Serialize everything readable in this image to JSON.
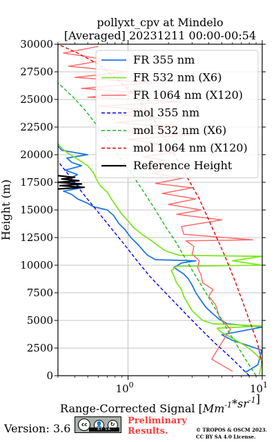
{
  "chart_data": {
    "type": "line",
    "title_line1": "pollyxt_cpv at Mindelo",
    "title_line2": "[Averaged] 20231211 00:00-00:54",
    "xlabel": "Range-Corrected Signal [$Mm^{-1}*sr^{-1}$]",
    "ylabel": "Height (m)",
    "xscale": "log",
    "xlim": [
      0.3,
      10
    ],
    "ylim": [
      0,
      30000
    ],
    "x_ticks_major": [
      {
        "value": 1,
        "base": "10",
        "exp": "0"
      },
      {
        "value": 10,
        "base": "10",
        "exp": "1"
      }
    ],
    "y_ticks": [
      0,
      2500,
      5000,
      7500,
      10000,
      12500,
      15000,
      17500,
      20000,
      22500,
      25000,
      27500,
      30000
    ],
    "grid": true,
    "legend_position": "top-right",
    "series": [
      {
        "name": "FR 355 nm",
        "color": "#1f77e8",
        "style": "solid",
        "width": 1.8,
        "points": [
          [
            7.5,
            300
          ],
          [
            9.3,
            1000
          ],
          [
            9.9,
            2300
          ],
          [
            8.0,
            2700
          ],
          [
            6.0,
            3200
          ],
          [
            5.0,
            3700
          ],
          [
            10.0,
            4400
          ],
          [
            5.5,
            4700
          ],
          [
            4.8,
            5100
          ],
          [
            4.2,
            5700
          ],
          [
            3.8,
            6200
          ],
          [
            3.5,
            6800
          ],
          [
            3.2,
            7500
          ],
          [
            3.0,
            8200
          ],
          [
            2.8,
            8800
          ],
          [
            2.6,
            9200
          ],
          [
            2.2,
            9800
          ],
          [
            2.5,
            10200
          ],
          [
            3.2,
            10400
          ],
          [
            1.6,
            10500
          ],
          [
            1.4,
            10900
          ],
          [
            1.3,
            11300
          ],
          [
            1.2,
            11800
          ],
          [
            1.05,
            12500
          ],
          [
            0.95,
            13200
          ],
          [
            0.85,
            13800
          ],
          [
            0.78,
            14500
          ],
          [
            0.7,
            15000
          ],
          [
            0.55,
            15300
          ],
          [
            0.5,
            15600
          ],
          [
            0.42,
            16000
          ],
          [
            0.38,
            16400
          ],
          [
            0.33,
            16700
          ],
          [
            0.45,
            17000
          ],
          [
            0.4,
            17400
          ],
          [
            0.36,
            17800
          ],
          [
            0.42,
            18200
          ],
          [
            0.34,
            18600
          ],
          [
            0.45,
            19000
          ],
          [
            0.38,
            19300
          ],
          [
            0.35,
            19700
          ],
          [
            0.5,
            20000
          ],
          [
            0.32,
            20400
          ],
          [
            0.3,
            20800
          ]
        ]
      },
      {
        "name": "FR 532 nm (X6)",
        "color": "#7fe61f",
        "style": "solid",
        "width": 1.8,
        "points": [
          [
            9.5,
            100
          ],
          [
            9.8,
            800
          ],
          [
            10.0,
            1300
          ],
          [
            9.2,
            1800
          ],
          [
            8.3,
            2300
          ],
          [
            7.5,
            2700
          ],
          [
            6.2,
            3300
          ],
          [
            5.0,
            3900
          ],
          [
            4.6,
            4300
          ],
          [
            10.0,
            4500
          ],
          [
            4.3,
            4700
          ],
          [
            3.6,
            5000
          ],
          [
            3.3,
            5400
          ],
          [
            3.0,
            5900
          ],
          [
            2.8,
            6500
          ],
          [
            2.6,
            7200
          ],
          [
            2.5,
            7800
          ],
          [
            2.3,
            8400
          ],
          [
            2.2,
            9000
          ],
          [
            2.1,
            9500
          ],
          [
            2.3,
            9900
          ],
          [
            10.0,
            10000
          ],
          [
            6.0,
            10400
          ],
          [
            10.0,
            10800
          ],
          [
            2.4,
            10900
          ],
          [
            1.9,
            11300
          ],
          [
            1.7,
            11700
          ],
          [
            1.5,
            12200
          ],
          [
            1.3,
            12700
          ],
          [
            1.1,
            13400
          ],
          [
            1.0,
            14000
          ],
          [
            0.9,
            14600
          ],
          [
            0.82,
            15300
          ],
          [
            0.75,
            16000
          ],
          [
            0.7,
            16600
          ],
          [
            0.62,
            17200
          ],
          [
            0.58,
            17800
          ],
          [
            0.55,
            18400
          ],
          [
            0.5,
            19000
          ],
          [
            0.42,
            19600
          ],
          [
            0.35,
            20200
          ],
          [
            0.32,
            20600
          ],
          [
            0.3,
            21000
          ]
        ]
      },
      {
        "name": "FR 1064 nm (X120)",
        "color": "#ff6b6b",
        "style": "solid",
        "width": 1.5,
        "points": [
          [
            6.0,
            400
          ],
          [
            4.2,
            1500
          ],
          [
            5.0,
            3000
          ],
          [
            5.8,
            4200
          ],
          [
            4.8,
            5300
          ],
          [
            4.5,
            6400
          ],
          [
            4.0,
            7200
          ],
          [
            4.3,
            7800
          ],
          [
            3.6,
            8400
          ],
          [
            3.5,
            9100
          ],
          [
            3.3,
            9800
          ],
          [
            3.4,
            10400
          ],
          [
            3.0,
            11000
          ],
          [
            3.1,
            11700
          ],
          [
            2.7,
            12200
          ],
          [
            8.5,
            12300
          ],
          [
            2.6,
            12800
          ],
          [
            2.5,
            13500
          ],
          [
            5.0,
            14100
          ],
          [
            2.3,
            14600
          ],
          [
            3.5,
            15000
          ],
          [
            2.0,
            15500
          ],
          [
            3.2,
            16000
          ],
          [
            1.8,
            16500
          ],
          [
            3.0,
            17000
          ],
          [
            1.6,
            17400
          ],
          [
            2.6,
            17900
          ],
          [
            1.5,
            18300
          ],
          [
            2.2,
            18700
          ],
          [
            1.4,
            19100
          ],
          [
            1.9,
            19500
          ],
          [
            1.3,
            19800
          ],
          [
            2.2,
            20200
          ],
          [
            1.1,
            20600
          ],
          [
            1.7,
            21000
          ],
          [
            1.0,
            21400
          ],
          [
            3.0,
            21800
          ],
          [
            0.9,
            22100
          ],
          [
            2.2,
            22500
          ],
          [
            0.8,
            22900
          ],
          [
            1.8,
            23300
          ],
          [
            0.7,
            23700
          ],
          [
            1.5,
            24000
          ],
          [
            0.6,
            24400
          ],
          [
            2.5,
            24800
          ],
          [
            0.5,
            25200
          ],
          [
            1.2,
            25600
          ],
          [
            0.45,
            26000
          ],
          [
            1.5,
            26500
          ],
          [
            0.4,
            27000
          ],
          [
            1.0,
            27500
          ],
          [
            0.36,
            28000
          ],
          [
            0.7,
            28600
          ],
          [
            0.33,
            29200
          ],
          [
            0.6,
            29800
          ]
        ]
      },
      {
        "name": "mol 355 nm",
        "color": "#0000ff",
        "style": "dashed",
        "width": 1.4,
        "points": [
          [
            8.0,
            0
          ],
          [
            6.0,
            1500
          ],
          [
            4.4,
            3000
          ],
          [
            3.3,
            4500
          ],
          [
            2.5,
            6000
          ],
          [
            1.9,
            7500
          ],
          [
            1.45,
            9000
          ],
          [
            1.15,
            10500
          ],
          [
            0.92,
            12000
          ],
          [
            0.73,
            13500
          ],
          [
            0.58,
            15000
          ],
          [
            0.46,
            16500
          ],
          [
            0.37,
            18000
          ],
          [
            0.3,
            19400
          ]
        ]
      },
      {
        "name": "mol 532 nm (X6)",
        "color": "#16b816",
        "style": "dashed",
        "width": 1.4,
        "points": [
          [
            9.0,
            0
          ],
          [
            7.5,
            1500
          ],
          [
            6.3,
            3000
          ],
          [
            5.3,
            4500
          ],
          [
            4.5,
            6000
          ],
          [
            3.8,
            7500
          ],
          [
            3.2,
            9000
          ],
          [
            2.7,
            10500
          ],
          [
            2.3,
            12000
          ],
          [
            1.9,
            13500
          ],
          [
            1.6,
            15000
          ],
          [
            1.33,
            16500
          ],
          [
            1.1,
            18000
          ],
          [
            0.9,
            19500
          ],
          [
            0.74,
            21000
          ],
          [
            0.6,
            22500
          ],
          [
            0.48,
            24000
          ],
          [
            0.39,
            25200
          ],
          [
            0.3,
            26500
          ]
        ]
      },
      {
        "name": "mol 1064 nm (X120)",
        "color": "#e00000",
        "style": "dashed",
        "width": 1.4,
        "points": [
          [
            10.0,
            1000
          ],
          [
            9.2,
            3000
          ],
          [
            7.5,
            6000
          ],
          [
            6.3,
            8500
          ],
          [
            5.2,
            11000
          ],
          [
            4.2,
            13500
          ],
          [
            3.4,
            16000
          ],
          [
            2.6,
            18500
          ],
          [
            2.0,
            21000
          ],
          [
            1.5,
            23500
          ],
          [
            1.1,
            25500
          ],
          [
            0.8,
            27000
          ],
          [
            0.6,
            28200
          ],
          [
            0.42,
            29200
          ],
          [
            0.3,
            30000
          ]
        ]
      },
      {
        "name": "Reference Height",
        "color": "#000000",
        "style": "solid",
        "width": 2.2,
        "points": [
          [
            0.3,
            16900
          ],
          [
            0.47,
            17050
          ],
          [
            0.31,
            17200
          ],
          [
            0.45,
            17350
          ],
          [
            0.3,
            17500
          ],
          [
            0.43,
            17650
          ],
          [
            0.32,
            17800
          ],
          [
            0.4,
            17950
          ],
          [
            0.3,
            18100
          ]
        ]
      }
    ]
  },
  "footer": {
    "version": "Version: 3.6",
    "preliminary_line1": "Preliminary",
    "preliminary_line2": "Results.",
    "copyright_line1": "© TROPOS & OSCM 2023.",
    "copyright_line2": "CC BY SA 4.0 License.",
    "license_badge": {
      "symbols": [
        "cc",
        "by",
        "sa"
      ],
      "strip_text": "BY   SA"
    }
  }
}
